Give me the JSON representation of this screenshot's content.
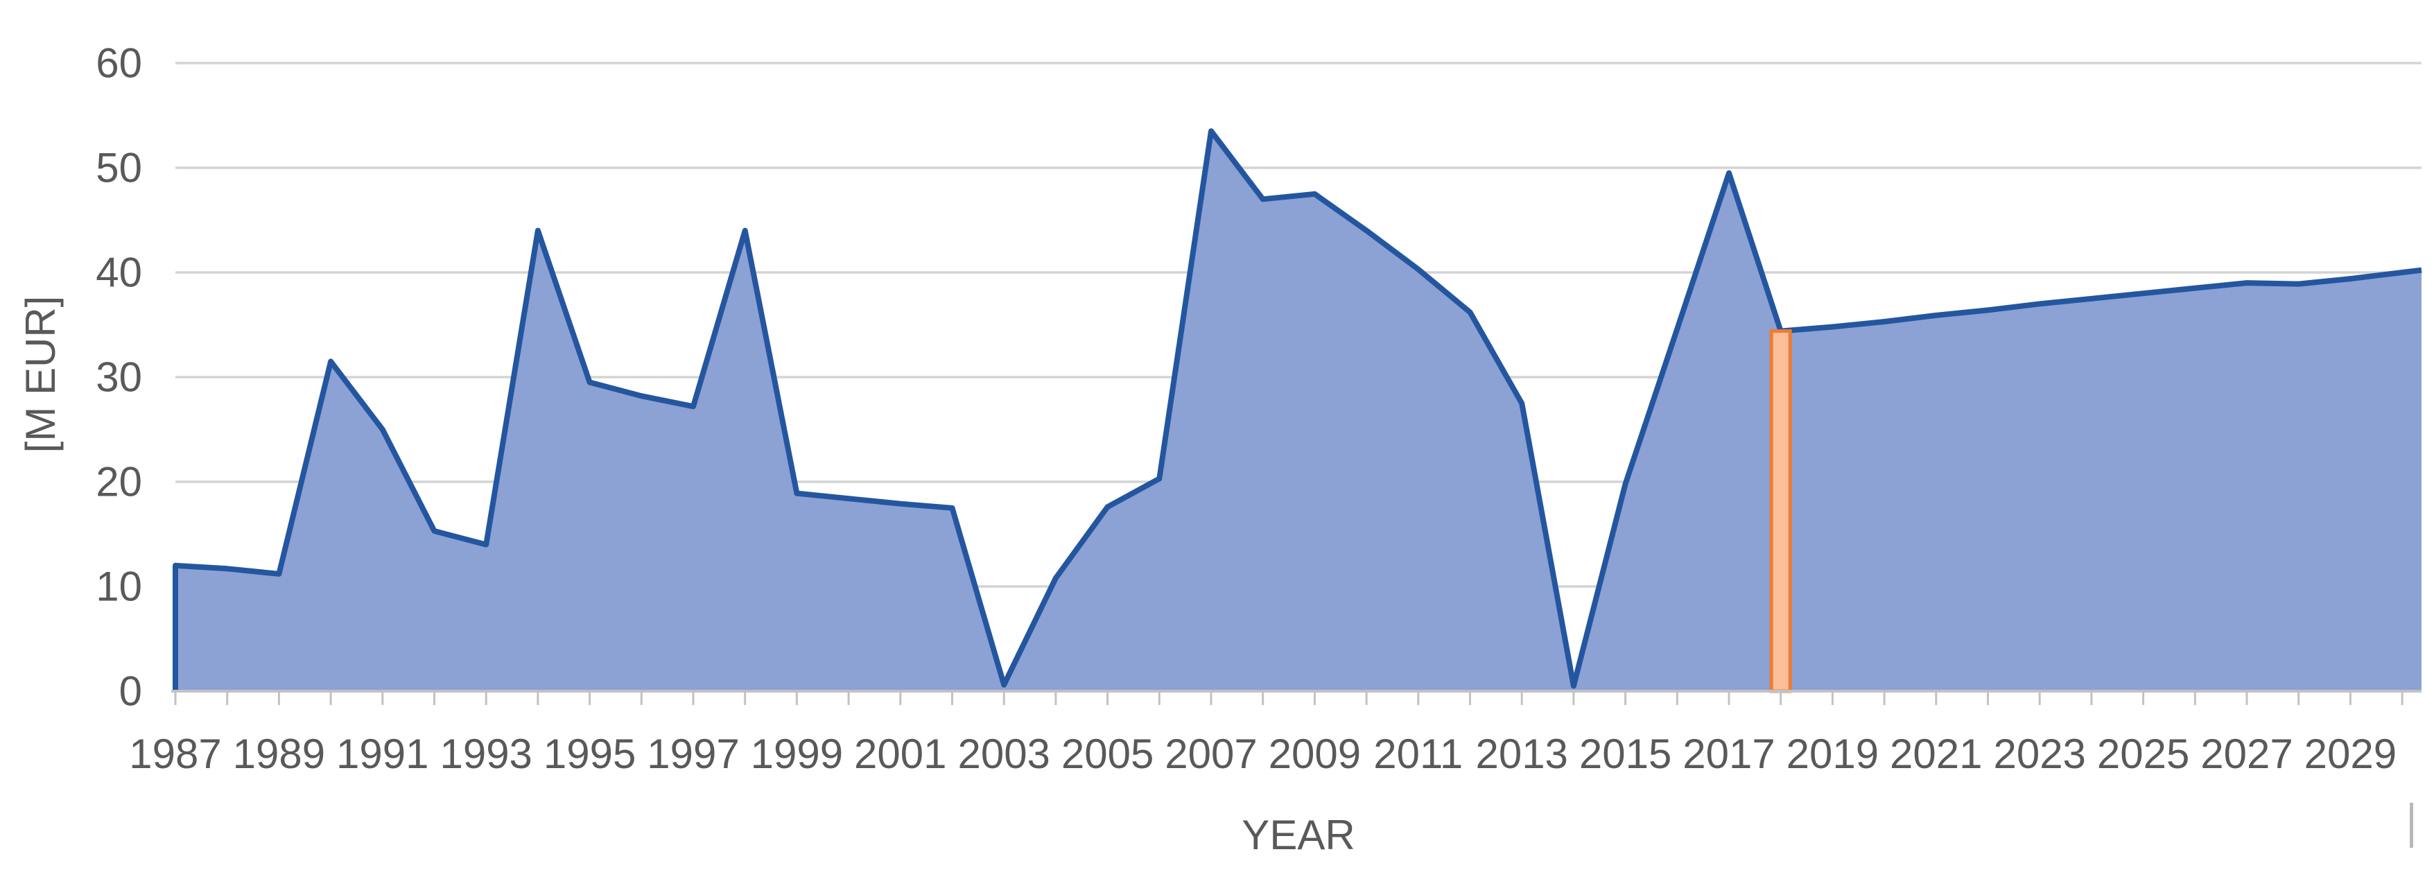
{
  "chart_data": {
    "type": "area",
    "xlabel": "YEAR",
    "ylabel": "[M EUR]",
    "x": [
      1987,
      1988,
      1989,
      1990,
      1991,
      1992,
      1993,
      1994,
      1995,
      1996,
      1997,
      1998,
      1999,
      2000,
      2001,
      2002,
      2003,
      2004,
      2005,
      2006,
      2007,
      2008,
      2009,
      2010,
      2011,
      2012,
      2013,
      2014,
      2015,
      2016,
      2017,
      2018,
      2019,
      2020,
      2021,
      2022,
      2023,
      2024,
      2025,
      2026,
      2027,
      2028,
      2029,
      2030
    ],
    "values": [
      12,
      11.7,
      11.2,
      31.5,
      25,
      15.3,
      14,
      44,
      29.5,
      28.2,
      27.2,
      44,
      18.9,
      18.4,
      17.9,
      17.5,
      0.6,
      10.8,
      17.6,
      20.3,
      53.5,
      47,
      47.5,
      44,
      40.3,
      36.2,
      27.5,
      0.5,
      19.8,
      34.6,
      49.5,
      34.4,
      34.8,
      35.3,
      35.9,
      36.4,
      37,
      37.5,
      38,
      38.5,
      39,
      38.9,
      39.4,
      40
    ],
    "ylim": [
      0,
      60
    ],
    "yticks": [
      0,
      10,
      20,
      30,
      40,
      50,
      60
    ],
    "xtick_labels": [
      "1987",
      "1989",
      "1991",
      "1993",
      "1995",
      "1997",
      "1999",
      "2001",
      "2003",
      "2005",
      "2007",
      "2009",
      "2011",
      "2013",
      "2015",
      "2017",
      "2019",
      "2021",
      "2023",
      "2025",
      "2027",
      "2029"
    ],
    "minor_tick_every_years": 1,
    "grid": "horizontal",
    "legend_position": "none",
    "highlight_bar": {
      "year": 2018,
      "value": 34.4
    }
  },
  "colors": {
    "background": "#FFFFFF",
    "area_fill": "#8CA1D4",
    "series_line": "#2456A0",
    "highlight_fill": "#FBBE99",
    "highlight_border": "#ED7D31",
    "gridline": "#D4D4D4",
    "axis_line": "#C2C2C2",
    "tick_label": "#595959",
    "axis_title": "#595959",
    "artifact": "#A6A6A6"
  }
}
